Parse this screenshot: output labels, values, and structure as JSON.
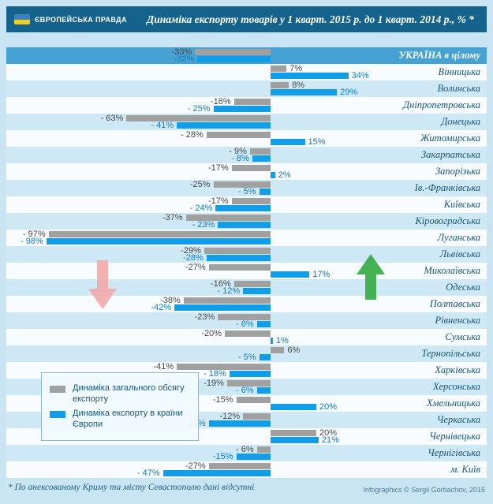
{
  "header": {
    "logo_text": "ЄВРОПЕЙСЬКА ПРАВДА",
    "title": "Динаміка експорту товарів у 1 кварт. 2015 р. до 1 кварт. 2014 р., % *"
  },
  "legend": {
    "items": [
      {
        "color": "#a0a0a0",
        "label": "Динаміка загального обсягу експорту"
      },
      {
        "color": "#129de8",
        "label": "Динаміка експорту в країни Європи"
      }
    ]
  },
  "footnote": "* По анексованому Криму та місту Севастополю дані відсутні",
  "credit": "Infographics © Sergii Gorbachov, 2015",
  "chart_data": {
    "type": "bar",
    "orientation": "horizontal",
    "unit": "%",
    "series": [
      "Динаміка загального обсягу експорту",
      "Динаміка експорту в країни Європи"
    ],
    "colors": {
      "total": "#a0a0a0",
      "eu": "#129de8"
    },
    "axis": {
      "zero_line": true,
      "xlim": [
        -100,
        40
      ]
    },
    "rows": [
      {
        "region": "УКРАЇНА в цілому",
        "total": -33,
        "total_label": "-33%",
        "eu": -32,
        "eu_label": "-32%"
      },
      {
        "region": "Вінницька",
        "total": 7,
        "total_label": "7%",
        "eu": 34,
        "eu_label": "34%"
      },
      {
        "region": "Волинська",
        "total": 8,
        "total_label": "8%",
        "eu": 29,
        "eu_label": "29%"
      },
      {
        "region": "Дніпропетровська",
        "total": -16,
        "total_label": "-16%",
        "eu": -25,
        "eu_label": "- 25%"
      },
      {
        "region": "Донецька",
        "total": -63,
        "total_label": "- 63%",
        "eu": -41,
        "eu_label": "- 41%"
      },
      {
        "region": "Житомирська",
        "total": -28,
        "total_label": "- 28%",
        "eu": 15,
        "eu_label": "15%"
      },
      {
        "region": "Закарпатська",
        "total": -9,
        "total_label": "- 9%",
        "eu": -8,
        "eu_label": "- 8%"
      },
      {
        "region": "Запорізька",
        "total": -17,
        "total_label": "-17%",
        "eu": 2,
        "eu_label": "2%"
      },
      {
        "region": "Ів.-Франківська",
        "total": -25,
        "total_label": "-25%",
        "eu": -5,
        "eu_label": "- 5%"
      },
      {
        "region": "Київська",
        "total": -17,
        "total_label": "-17%",
        "eu": -24,
        "eu_label": "- 24%"
      },
      {
        "region": "Кіровоградська",
        "total": -37,
        "total_label": "-37%",
        "eu": -23,
        "eu_label": "- 23%"
      },
      {
        "region": "Луганська",
        "total": -97,
        "total_label": "- 97%",
        "eu": -98,
        "eu_label": "- 98%"
      },
      {
        "region": "Львівська",
        "total": -29,
        "total_label": "-29%",
        "eu": -28,
        "eu_label": "-28%"
      },
      {
        "region": "Миколаївська",
        "total": -27,
        "total_label": "-27%",
        "eu": 17,
        "eu_label": "17%"
      },
      {
        "region": "Одеська",
        "total": -16,
        "total_label": "-16%",
        "eu": -12,
        "eu_label": "- 12%"
      },
      {
        "region": "Полтавська",
        "total": -38,
        "total_label": "-38%",
        "eu": -42,
        "eu_label": "-42%"
      },
      {
        "region": "Рівненська",
        "total": -23,
        "total_label": "-23%",
        "eu": -6,
        "eu_label": "- 6%"
      },
      {
        "region": "Сумська",
        "total": -20,
        "total_label": "-20%",
        "eu": 1,
        "eu_label": "1%"
      },
      {
        "region": "Тернопільська",
        "total": 6,
        "total_label": "6%",
        "eu": -5,
        "eu_label": "- 5%"
      },
      {
        "region": "Харківська",
        "total": -41,
        "total_label": "-41%",
        "eu": -18,
        "eu_label": "- 18%"
      },
      {
        "region": "Херсонська",
        "total": -19,
        "total_label": "-19%",
        "eu": -6,
        "eu_label": "- 6%"
      },
      {
        "region": "Хмельницька",
        "total": -15,
        "total_label": "-15%",
        "eu": 20,
        "eu_label": "20%"
      },
      {
        "region": "Черкаська",
        "total": -12,
        "total_label": "-12%",
        "eu": -27,
        "eu_label": "- 27%"
      },
      {
        "region": "Чернівецька",
        "total": 20,
        "total_label": "20%",
        "eu": 21,
        "eu_label": "21%"
      },
      {
        "region": "Чернігівська",
        "total": -6,
        "total_label": "- 6%",
        "eu": -15,
        "eu_label": "-15%"
      },
      {
        "region": "м. Київ",
        "total": -27,
        "total_label": "-27%",
        "eu": -47,
        "eu_label": "- 47%"
      }
    ]
  }
}
